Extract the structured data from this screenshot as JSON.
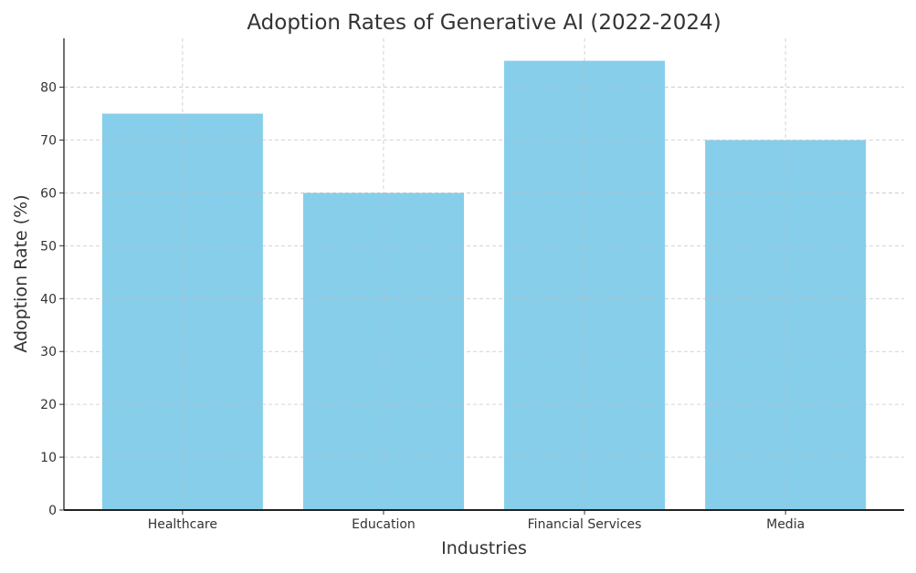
{
  "chart_data": {
    "type": "bar",
    "title": "Adoption Rates of Generative AI (2022-2024)",
    "xlabel": "Industries",
    "ylabel": "Adoption Rate (%)",
    "categories": [
      "Healthcare",
      "Education",
      "Financial Services",
      "Media"
    ],
    "values": [
      75,
      60,
      85,
      70
    ],
    "ylim": [
      0,
      89.25
    ],
    "yticks": [
      0,
      10,
      20,
      30,
      40,
      50,
      60,
      70,
      80
    ],
    "grid": true,
    "bar_color": "#87CEEB"
  }
}
